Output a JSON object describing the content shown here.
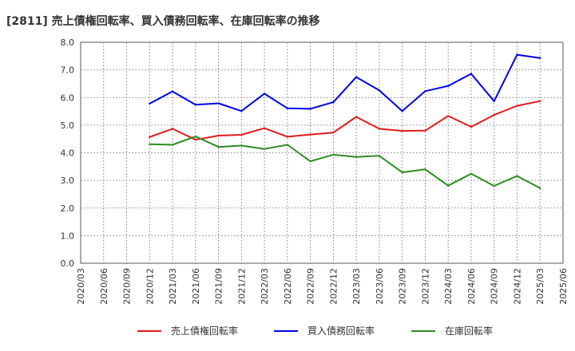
{
  "chart_data": {
    "type": "line",
    "title": "[2811]  売上債権回転率、買入債務回転率、在庫回転率の推移",
    "xlabel": "",
    "ylabel": "",
    "ylim": [
      0,
      8
    ],
    "yticks": [
      "0.0",
      "1.0",
      "2.0",
      "3.0",
      "4.0",
      "5.0",
      "6.0",
      "7.0",
      "8.0"
    ],
    "grid": true,
    "legend_position": "bottom",
    "categories": [
      "2020/03",
      "2020/06",
      "2020/09",
      "2020/12",
      "2021/03",
      "2021/06",
      "2021/09",
      "2021/12",
      "2022/03",
      "2022/06",
      "2022/09",
      "2022/12",
      "2023/03",
      "2023/06",
      "2023/09",
      "2023/12",
      "2024/03",
      "2024/06",
      "2024/09",
      "2024/12",
      "2025/03",
      "2025/06"
    ],
    "series": [
      {
        "name": "売上債権回転率",
        "color": "#e31a1c",
        "values": [
          null,
          null,
          null,
          4.57,
          4.87,
          4.47,
          4.62,
          4.65,
          4.89,
          4.58,
          4.66,
          4.73,
          5.3,
          4.87,
          4.79,
          4.8,
          5.33,
          4.94,
          5.37,
          5.7,
          5.87,
          null
        ]
      },
      {
        "name": "買入債務回転率",
        "color": "#0000e6",
        "values": [
          null,
          null,
          null,
          5.78,
          6.22,
          5.74,
          5.79,
          5.51,
          6.14,
          5.61,
          5.59,
          5.83,
          6.74,
          6.26,
          5.51,
          6.23,
          6.42,
          6.86,
          5.87,
          7.55,
          7.43,
          null
        ]
      },
      {
        "name": "在庫回転率",
        "color": "#2e8b22",
        "values": [
          null,
          null,
          null,
          4.31,
          4.29,
          4.59,
          4.21,
          4.26,
          4.14,
          4.29,
          3.69,
          3.93,
          3.85,
          3.89,
          3.29,
          3.4,
          2.81,
          3.24,
          2.8,
          3.16,
          2.72,
          null
        ]
      }
    ]
  }
}
